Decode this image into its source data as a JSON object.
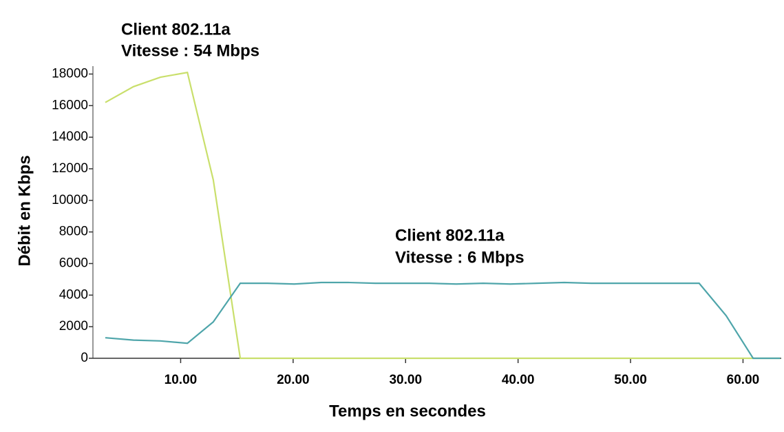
{
  "chart_data": {
    "type": "line",
    "annotations": [
      {
        "lines": [
          "Client 802.11a",
          "Vitesse : 54 Mbps"
        ]
      },
      {
        "lines": [
          "Client 802.11a",
          "Vitesse : 6 Mbps"
        ]
      }
    ],
    "x_label": "Temps en secondes",
    "y_label": "Débit en Kbps",
    "x": [
      3.3,
      5.8,
      8.2,
      10.6,
      12.9,
      15.3,
      17.7,
      20.1,
      22.5,
      24.9,
      27.3,
      29.7,
      32.1,
      34.5,
      36.9,
      39.3,
      41.7,
      44.1,
      46.5,
      48.9,
      51.3,
      53.7,
      56.1,
      58.5,
      60.9,
      63.3
    ],
    "series": [
      {
        "color": "#c9df6b",
        "values": [
          16200,
          17200,
          17800,
          18100,
          11300,
          0,
          0,
          0,
          0,
          0,
          0,
          0,
          0,
          0,
          0,
          0,
          0,
          0,
          0,
          0,
          0,
          0,
          0,
          0,
          0,
          0
        ]
      },
      {
        "color": "#4ea5aa",
        "values": [
          1300,
          1150,
          1100,
          950,
          2300,
          4750,
          4750,
          4700,
          4800,
          4800,
          4750,
          4750,
          4750,
          4700,
          4750,
          4700,
          4750,
          4800,
          4750,
          4750,
          4750,
          4750,
          4750,
          2700,
          0,
          0
        ]
      }
    ],
    "xlim": [
      2.2,
      63.4
    ],
    "ylim": [
      0,
      18500
    ],
    "xticks": [
      {
        "value": 10,
        "label": "10.00"
      },
      {
        "value": 20,
        "label": "20.00"
      },
      {
        "value": 30,
        "label": "30.00"
      },
      {
        "value": 40,
        "label": "40.00"
      },
      {
        "value": 50,
        "label": "50.00"
      },
      {
        "value": 60,
        "label": "60.00"
      }
    ],
    "yticks": [
      0,
      2000,
      4000,
      6000,
      8000,
      10000,
      12000,
      14000,
      16000,
      18000
    ]
  }
}
